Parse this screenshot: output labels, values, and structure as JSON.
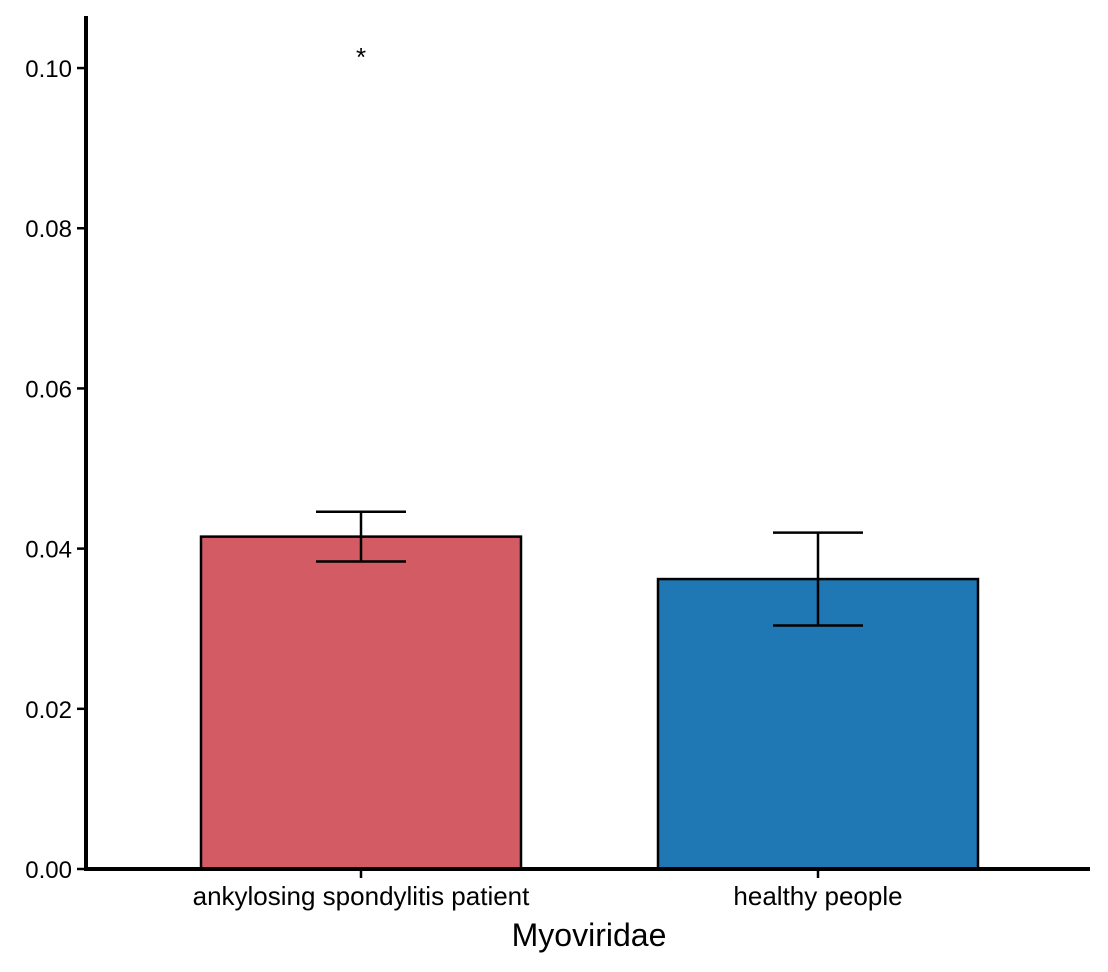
{
  "chart_data": {
    "type": "bar",
    "title": "",
    "xlabel": "Myoviridae",
    "ylabel": "",
    "categories": [
      "ankylosing spondylitis patient",
      "healthy people"
    ],
    "values": [
      0.0415,
      0.0362
    ],
    "error_low": [
      0.0384,
      0.0304
    ],
    "error_high": [
      0.0446,
      0.042
    ],
    "colors": [
      "#D35B63",
      "#1F77B4"
    ],
    "ylim": [
      0,
      0.1065
    ],
    "yticks": [
      0.0,
      0.02,
      0.04,
      0.06,
      0.08,
      0.1
    ],
    "ytick_labels": [
      "0.00",
      "0.02",
      "0.04",
      "0.06",
      "0.08",
      "0.10"
    ],
    "annotation": {
      "text": "*",
      "category": "ankylosing spondylitis patient",
      "y": 0.102
    },
    "grid": false,
    "legend": "none"
  }
}
